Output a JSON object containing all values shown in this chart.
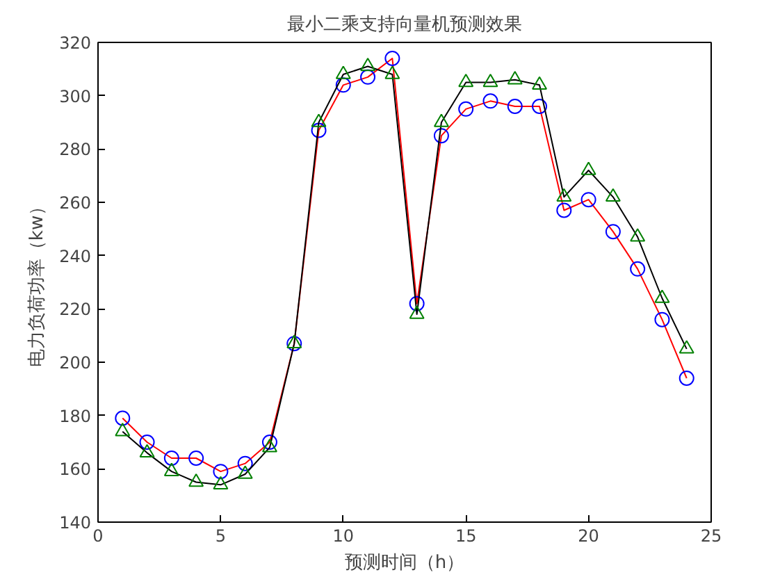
{
  "chart_data": {
    "type": "line",
    "title": "最小二乘支持向量机预测效果",
    "xlabel": "预测时间（h）",
    "ylabel": "电力负荷功率（kw）",
    "x": [
      1,
      2,
      3,
      4,
      5,
      6,
      7,
      8,
      9,
      10,
      11,
      12,
      13,
      14,
      15,
      16,
      17,
      18,
      19,
      20,
      21,
      22,
      23,
      24
    ],
    "series": [
      {
        "color": "#ff0000",
        "marker": "circle",
        "colors": [
          "#0000ff",
          "#0000ff",
          "#0000ff",
          "#0000ff",
          "#0000ff",
          "#0000ff",
          "#0000ff",
          "#0000ff",
          "#0000ff",
          "#0000ff",
          "#0000ff",
          "#0000ff",
          "#0000ff",
          "#0000ff",
          "#0000ff",
          "#0000ff",
          "#0000ff",
          "#0000ff",
          "#0000ff",
          "#0000ff",
          "#0000ff",
          "#0000ff",
          "#0000ff",
          "#0000ff"
        ],
        "values": [
          179,
          170,
          164,
          164,
          159,
          162,
          170,
          207,
          287,
          304,
          307,
          314,
          222,
          285,
          295,
          298,
          296,
          296,
          257,
          261,
          249,
          235,
          216,
          194
        ]
      },
      {
        "color": "#000000",
        "marker": "triangle",
        "colors": [
          "#008000",
          "#008000",
          "#008000",
          "#008000",
          "#008000",
          "#008000",
          "#008000",
          "#008000",
          "#008000",
          "#008000",
          "#008000",
          "#008000",
          "#008000",
          "#008000",
          "#008000",
          "#008000",
          "#008000",
          "#008000",
          "#008000",
          "#008000",
          "#008000",
          "#008000",
          "#008000",
          "#008000"
        ],
        "values": [
          174,
          166,
          159,
          155,
          154,
          158,
          168,
          207,
          290,
          308,
          311,
          308,
          218,
          290,
          305,
          305,
          306,
          304,
          262,
          272,
          262,
          247,
          224,
          205
        ]
      }
    ],
    "xlim": [
      0,
      25
    ],
    "xticks": [
      0,
      5,
      10,
      15,
      20,
      25
    ],
    "ylim": [
      140,
      320
    ],
    "yticks": [
      140,
      160,
      180,
      200,
      220,
      240,
      260,
      280,
      300,
      320
    ],
    "grid": false
  }
}
